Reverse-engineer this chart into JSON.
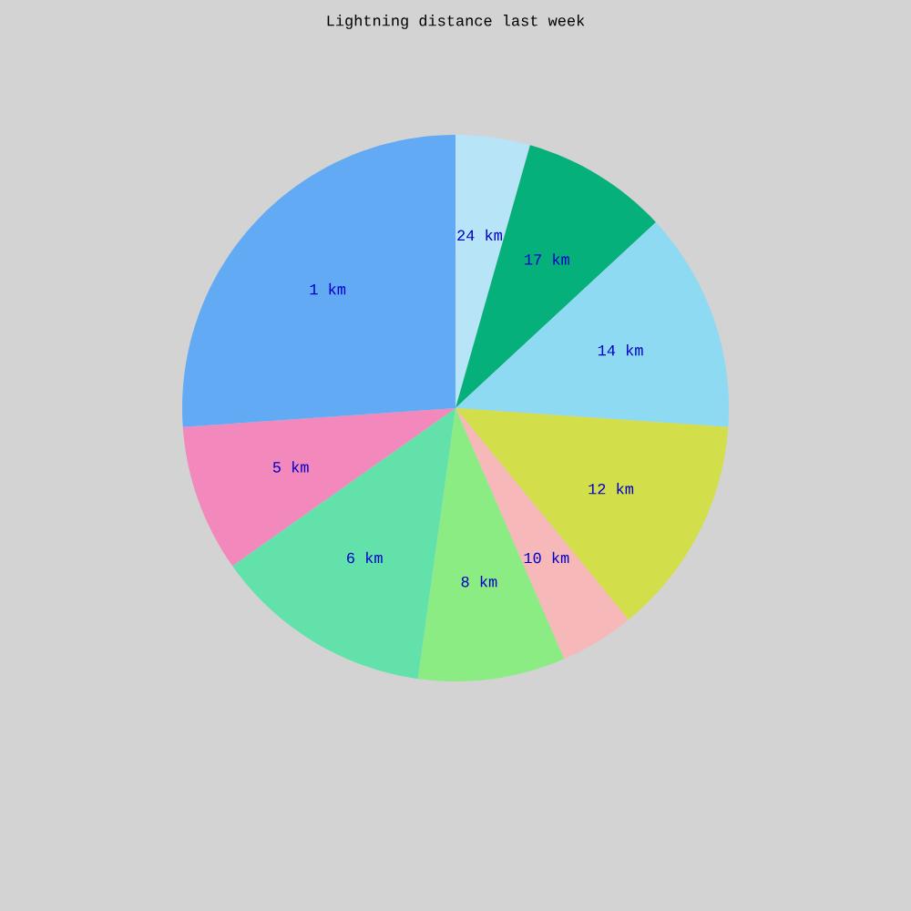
{
  "chart_data": {
    "type": "pie",
    "title": "Lightning distance last week",
    "categories": [
      "24 km",
      "17 km",
      "14 km",
      "12 km",
      "10 km",
      "8 km",
      "6 km",
      "5 km",
      "1 km"
    ],
    "values": [
      4.4,
      8.7,
      13.0,
      13.0,
      4.4,
      8.7,
      13.0,
      8.7,
      26.1
    ],
    "colors": [
      "#b8e4f8",
      "#06b07a",
      "#8edaf2",
      "#d2de4a",
      "#f6b8b8",
      "#8aec82",
      "#62e2aa",
      "#f388bc",
      "#62aaf4"
    ]
  }
}
